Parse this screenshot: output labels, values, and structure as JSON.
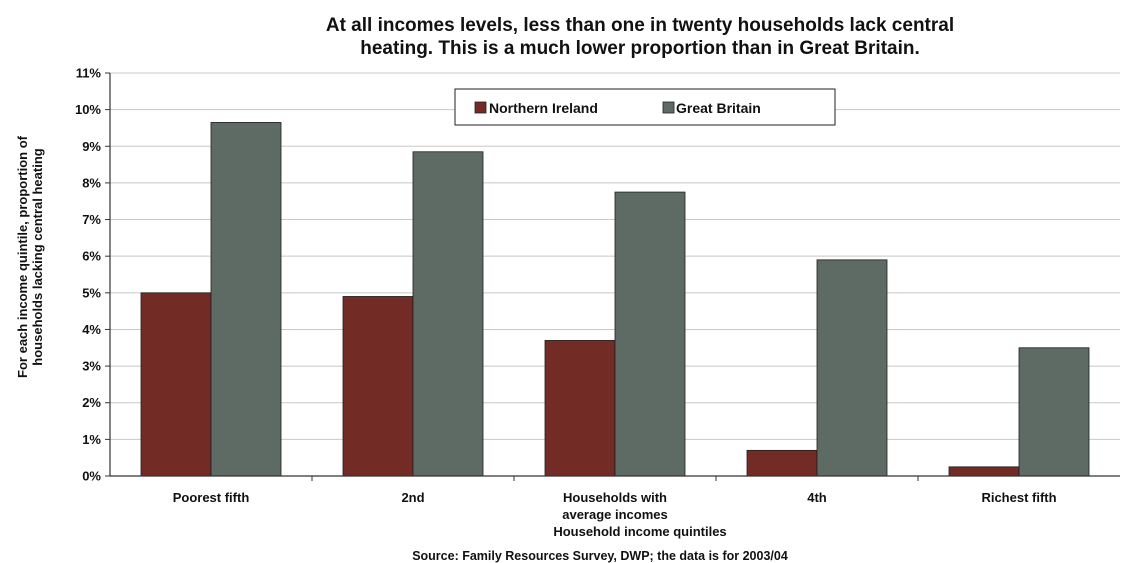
{
  "chart_data": {
    "type": "bar",
    "title_lines": [
      "At all incomes levels, less than one in twenty households lack central",
      "heating.  This is a much lower proportion than in Great Britain."
    ],
    "categories": [
      [
        "Poorest fifth"
      ],
      [
        "2nd"
      ],
      [
        "Households with",
        "average incomes"
      ],
      [
        "4th"
      ],
      [
        "Richest fifth"
      ]
    ],
    "series": [
      {
        "name": "Northern Ireland",
        "color": "#722b25",
        "values": [
          5.0,
          4.9,
          3.7,
          0.7,
          0.25
        ]
      },
      {
        "name": "Great Britain",
        "color": "#5d6b64",
        "values": [
          9.65,
          8.85,
          7.75,
          5.9,
          3.5
        ]
      }
    ],
    "ylim": [
      0,
      11
    ],
    "yticks": [
      "0%",
      "1%",
      "2%",
      "3%",
      "4%",
      "5%",
      "6%",
      "7%",
      "8%",
      "9%",
      "10%",
      "11%"
    ],
    "ylabel_lines": [
      "For each income quintile, proportion of",
      "households lacking central heating"
    ],
    "xlabel": "Household income quintiles",
    "source": "Source: Family Resources Survey, DWP; the data is for 2003/04",
    "grid": true,
    "legend_position": "top-center"
  }
}
